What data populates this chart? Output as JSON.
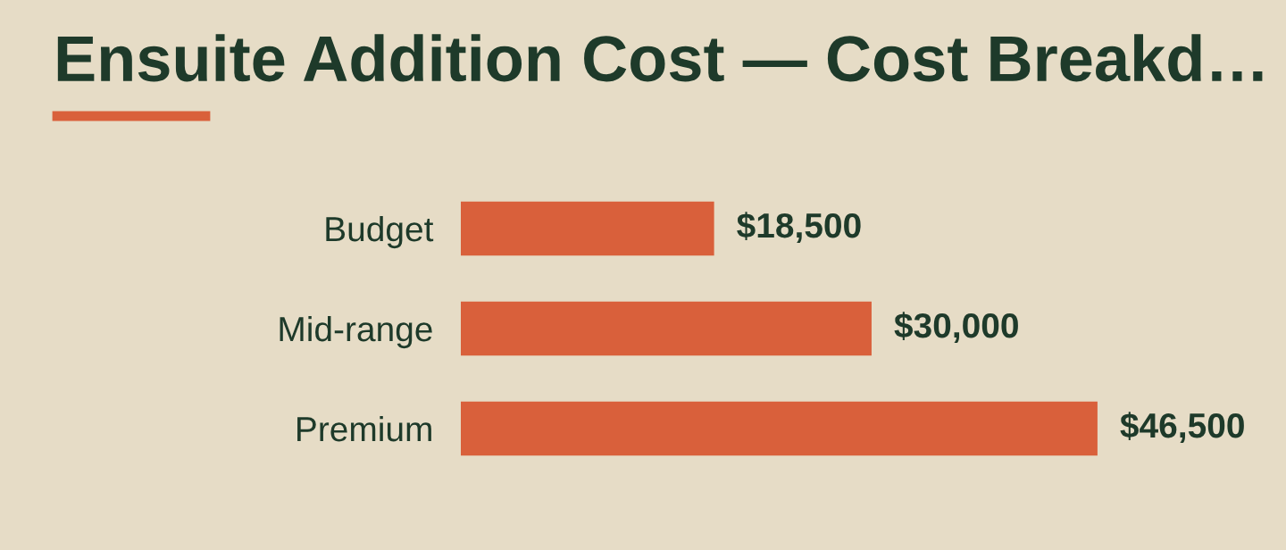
{
  "chart_data": {
    "type": "bar",
    "orientation": "horizontal",
    "title": "Ensuite Addition Cost — Cost Breakd…",
    "categories": [
      "Budget",
      "Mid-range",
      "Premium"
    ],
    "values": [
      18500,
      30000,
      46500
    ],
    "value_labels": [
      "$18,500",
      "$30,000",
      "$46,500"
    ],
    "color": "#d9603b",
    "grid": false,
    "legend": false
  }
}
